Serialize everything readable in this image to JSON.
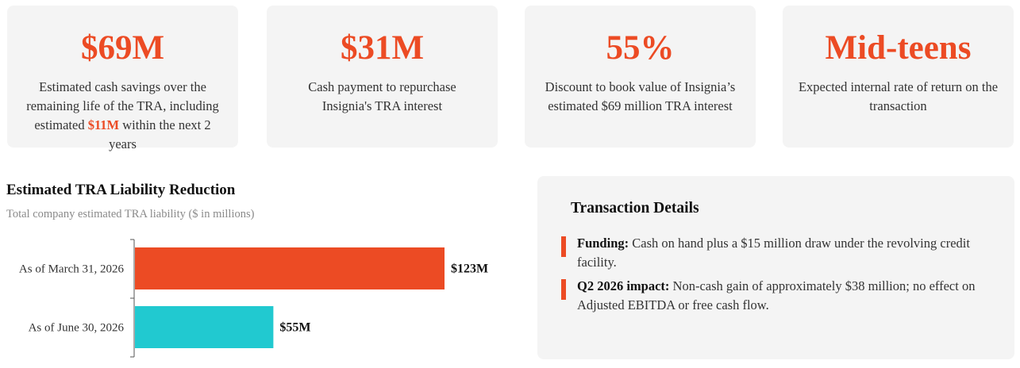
{
  "cards": [
    {
      "value": "$69M",
      "desc_pre": "Estimated cash savings over the remaining life of the TRA, including estimated ",
      "desc_hl": "$11M",
      "desc_post": " within the next 2 years"
    },
    {
      "value": "$31M",
      "desc": "Cash payment to repurchase Insignia's TRA interest"
    },
    {
      "value": "55%",
      "desc": "Discount to book value of Insignia’s estimated $69 million TRA interest"
    },
    {
      "value": "Mid-teens",
      "desc": "Expected internal rate of return on the transaction"
    }
  ],
  "chart_data": {
    "type": "bar",
    "orientation": "horizontal",
    "title": "Estimated TRA Liability Reduction",
    "subtitle": "Total company estimated TRA liability ($ in millions)",
    "categories": [
      "As of March 31, 2026",
      "As of June 30, 2026"
    ],
    "values": [
      123,
      55
    ],
    "data_labels": [
      "$123M",
      "$55M"
    ],
    "colors": [
      "#ec4b24",
      "#21c9d0"
    ],
    "xlim": [
      0,
      125
    ],
    "grid": false,
    "legend": "none"
  },
  "details": {
    "title": "Transaction Details",
    "items": [
      {
        "label": "Funding:",
        "text": " Cash on hand plus a $15 million draw under the revolving credit facility."
      },
      {
        "label": "Q2 2026 impact:",
        "text": " Non-cash gain of approximately $38 million; no effect on Adjusted EBITDA or free cash flow."
      }
    ]
  },
  "colors": {
    "accent": "#ec4b24",
    "teal": "#21c9d0",
    "card_bg": "#f4f4f4"
  }
}
